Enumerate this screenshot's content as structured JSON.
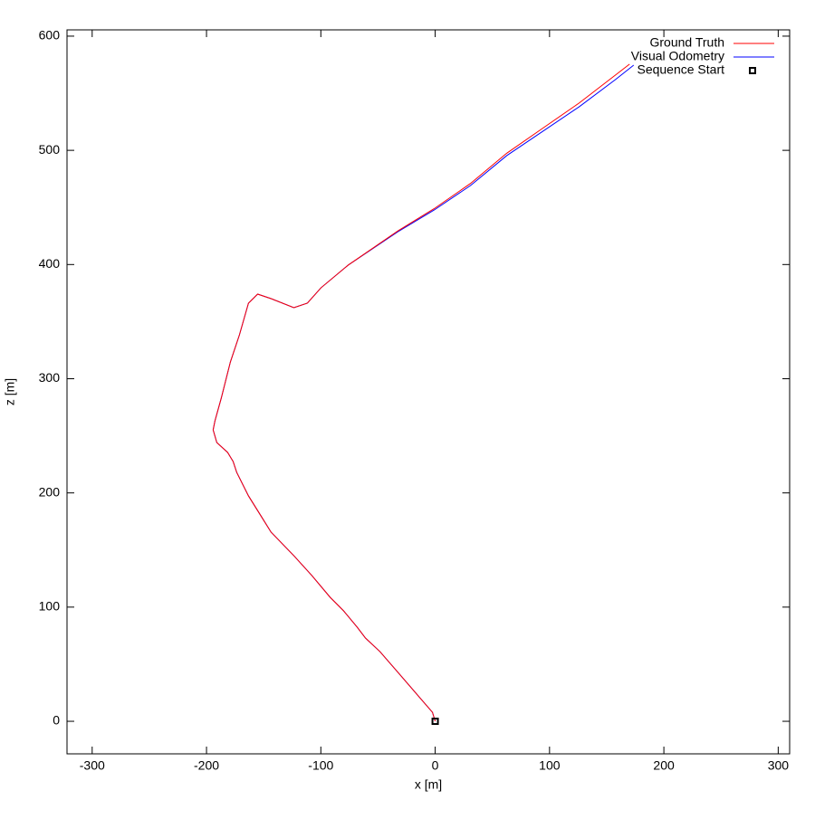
{
  "chart_data": {
    "type": "line",
    "xlabel": "x [m]",
    "ylabel": "z [m]",
    "xlim": [
      -322,
      310
    ],
    "ylim": [
      -28.5,
      605.5
    ],
    "xticks": [
      -300,
      -200,
      -100,
      0,
      100,
      200,
      300
    ],
    "yticks": [
      0,
      100,
      200,
      300,
      400,
      500,
      600
    ],
    "grid": false,
    "legend": "upper right",
    "series": [
      {
        "name": "Ground Truth",
        "color": "#ff0000",
        "mode": "line",
        "x": [
          0,
          -2.4,
          -12.7,
          -32.5,
          -48.3,
          -61.0,
          -68.2,
          -80.1,
          -91.9,
          -107.8,
          -123.6,
          -143.5,
          -151.4,
          -163.3,
          -173.6,
          -176.7,
          -181.5,
          -191.0,
          -194.2,
          -192.6,
          -187.1,
          -179.1,
          -171.2,
          -163.3,
          -155.3,
          -143.5,
          -123.6,
          -111.8,
          -99.9,
          -76.1,
          -32.5,
          -0.8,
          30.9,
          62.6,
          94.3,
          126.0,
          157.7,
          170.0
        ],
        "values": [
          0,
          7.9,
          19.8,
          42.8,
          61.0,
          72.9,
          82.4,
          96.7,
          108.6,
          127.6,
          145.0,
          165.6,
          178.3,
          197.4,
          218.0,
          227.5,
          235.4,
          244.1,
          255.2,
          263.1,
          283.0,
          314.7,
          338.4,
          366.2,
          374.1,
          370.1,
          362.2,
          366.2,
          379.6,
          399.5,
          429.5,
          449.0,
          471.0,
          497.5,
          519.5,
          541.5,
          566.0,
          575.5
        ]
      },
      {
        "name": "Visual Odometry",
        "color": "#0000ff",
        "mode": "line",
        "x": [
          0,
          -2.4,
          -12.7,
          -32.5,
          -48.3,
          -61.0,
          -68.2,
          -80.1,
          -91.9,
          -107.8,
          -123.6,
          -143.5,
          -151.4,
          -163.3,
          -173.6,
          -176.7,
          -181.5,
          -191.0,
          -194.2,
          -192.6,
          -187.1,
          -179.1,
          -171.2,
          -163.3,
          -155.3,
          -143.5,
          -123.6,
          -111.8,
          -99.9,
          -76.1,
          -32.5,
          -0.8,
          30.9,
          62.6,
          94.3,
          126.0,
          157.7,
          173.6
        ],
        "values": [
          0,
          7.9,
          19.8,
          42.8,
          61.0,
          72.9,
          82.4,
          96.7,
          108.6,
          127.6,
          145.0,
          165.6,
          178.3,
          197.4,
          218.0,
          227.5,
          235.4,
          244.1,
          255.2,
          263.1,
          283.0,
          314.7,
          338.4,
          366.2,
          374.1,
          370.1,
          362.2,
          366.2,
          379.6,
          399.5,
          428.8,
          447.8,
          469.2,
          495.4,
          516.8,
          538.2,
          562.0,
          574.6
        ]
      },
      {
        "name": "Sequence Start",
        "color": "#000000",
        "mode": "marker",
        "x": [
          0
        ],
        "values": [
          0
        ]
      }
    ]
  }
}
